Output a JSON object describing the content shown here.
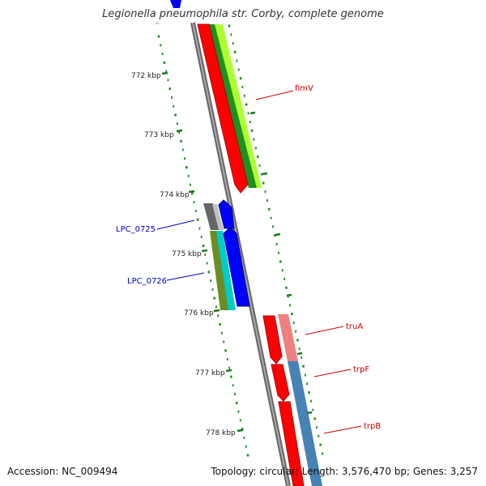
{
  "title": "Legionella pneumophila str. Corby, complete genome",
  "footer": {
    "accession": "Accession: NC_009494",
    "summary": "Topology: circular; Length: 3,576,470 bp; Genes: 3,257"
  },
  "ticks": [
    "772 kbp",
    "773 kbp",
    "774 kbp",
    "775 kbp",
    "776 kbp",
    "777 kbp",
    "778 kbp"
  ],
  "genes": [
    {
      "name": "fimV",
      "color": "#cc0000"
    },
    {
      "name": "LPC_0725",
      "color": "#0000cc"
    },
    {
      "name": "LPC_0726",
      "color": "#0000cc"
    },
    {
      "name": "truA",
      "color": "#cc0000"
    },
    {
      "name": "trpF",
      "color": "#cc0000"
    },
    {
      "name": "trpB",
      "color": "#cc0000"
    }
  ],
  "colors": {
    "backbone": "#888888",
    "cds_red": "#ff0000",
    "cds_blue": "#0000ff",
    "gc_green": "#228b22",
    "tick_green": "#1a7a1a",
    "olive": "#808000",
    "cyan": "#00cccc",
    "pink": "#f08080",
    "steelblue": "#4682b4",
    "lime": "#adff2f",
    "gray": "#666666"
  }
}
